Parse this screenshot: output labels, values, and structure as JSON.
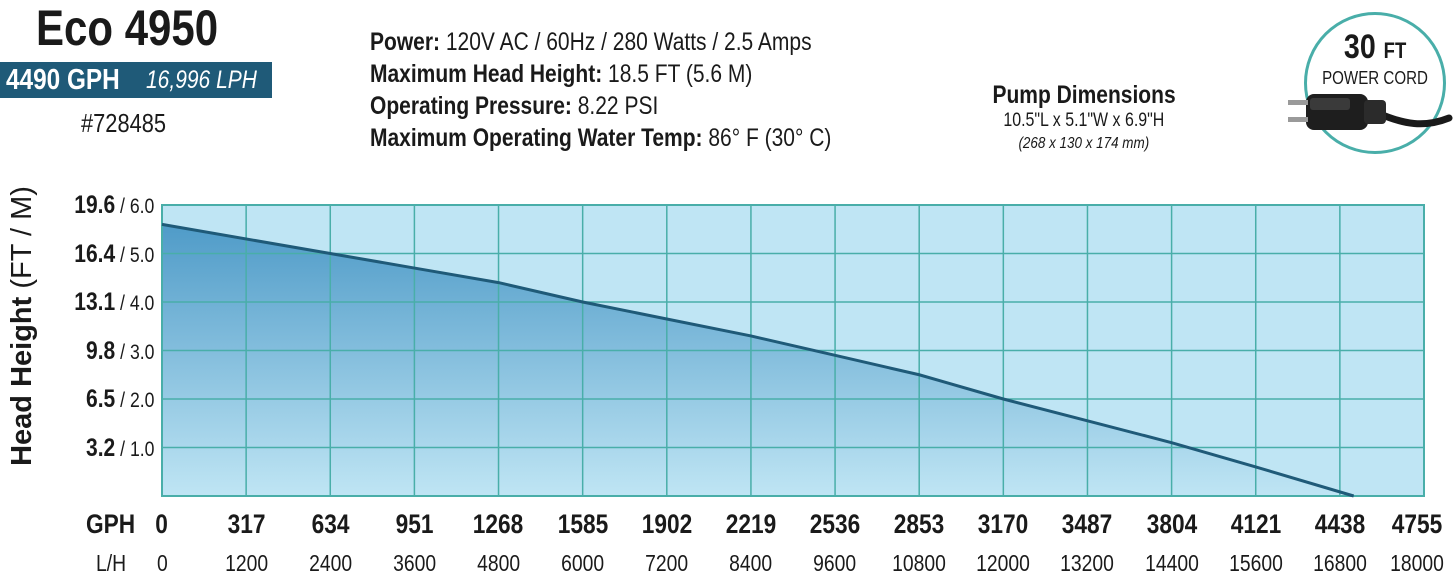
{
  "header": {
    "model": "Eco 4950",
    "flow_gph": "4490 GPH",
    "flow_lph": "16,996 LPH",
    "part_number": "#728485"
  },
  "specs": [
    {
      "label": "Power:",
      "value": " 120V AC / 60Hz / 280 Watts / 2.5 Amps"
    },
    {
      "label": "Maximum Head Height:",
      "value": " 18.5 FT (5.6 M)"
    },
    {
      "label": "Operating Pressure:",
      "value": " 8.22 PSI"
    },
    {
      "label": "Maximum Operating Water Temp:",
      "value": " 86° F (30° C)"
    }
  ],
  "dimensions": {
    "title": "Pump Dimensions",
    "size": "10.5\"L x 5.1\"W x 6.9\"H",
    "metric": "(268 x 130 x 174 mm)"
  },
  "power_cord": {
    "length": "30",
    "unit": "FT",
    "label": "POWER CORD",
    "icon": "power-plug-icon"
  },
  "colors": {
    "grid_line": "#49aea9",
    "plot_bg": "#bfe5f4",
    "curve_fill_top": "#4f9bc8",
    "curve_line": "#1f5a78",
    "badge_bg": "#1f5a78"
  },
  "chart_data": {
    "type": "area",
    "title": "",
    "ylabel": "Head Height",
    "ylabel_unit": "(FT / M)",
    "xlabel": "GPH",
    "xlabel_secondary": "L/H",
    "x_gph": [
      0,
      317,
      634,
      951,
      1268,
      1585,
      1902,
      2219,
      2536,
      2853,
      3170,
      3487,
      3804,
      4121,
      4438,
      4755
    ],
    "x_lh": [
      0,
      1200,
      2400,
      3600,
      4800,
      6000,
      7200,
      8400,
      9600,
      10800,
      12000,
      13200,
      14400,
      15600,
      16800,
      18000
    ],
    "y_ticks": [
      {
        "ft": "19.6",
        "m": "6.0"
      },
      {
        "ft": "16.4",
        "m": "5.0"
      },
      {
        "ft": "13.1",
        "m": "4.0"
      },
      {
        "ft": "9.8",
        "m": "3.0"
      },
      {
        "ft": "6.5",
        "m": "2.0"
      },
      {
        "ft": "3.2",
        "m": "1.0"
      }
    ],
    "xlim_gph": [
      0,
      4755
    ],
    "ylim_m": [
      0,
      6.0
    ],
    "grid": true,
    "series": [
      {
        "x_gph": [
          0,
          634,
          951,
          1268,
          1585,
          1902,
          2219,
          2536,
          2853,
          3170,
          3487,
          3804,
          4121,
          4490
        ],
        "y_m": [
          5.6,
          5.0,
          4.7,
          4.4,
          4.0,
          3.65,
          3.3,
          2.9,
          2.5,
          2.0,
          1.55,
          1.1,
          0.6,
          0.0
        ]
      }
    ]
  }
}
